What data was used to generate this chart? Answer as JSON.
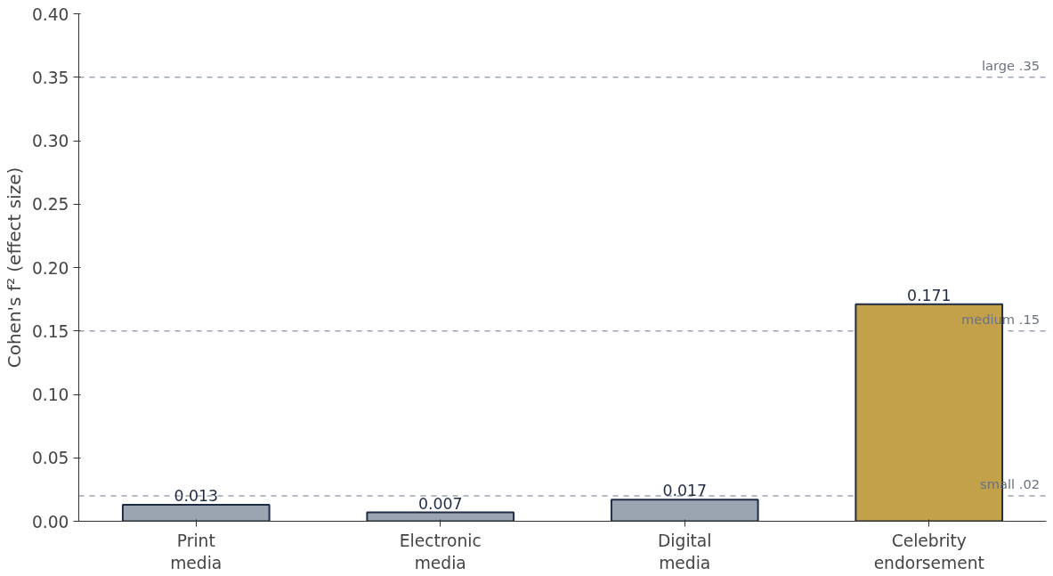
{
  "chart_data": {
    "type": "bar",
    "ylabel": "Cohen's f² (effect size)",
    "categories": [
      "Print\nmedia",
      "Electronic\nmedia",
      "Digital\nmedia",
      "Celebrity\nendorsement"
    ],
    "values": [
      0.013,
      0.007,
      0.017,
      0.171
    ],
    "colors": [
      "#9aa5b1",
      "#9aa5b1",
      "#9aa5b1",
      "#c2a14a"
    ],
    "data_labels": true,
    "ylim": [
      0,
      0.4
    ],
    "yticks": [
      {
        "value": 0,
        "label": "0.00"
      },
      {
        "value": 0.05,
        "label": "0.05"
      },
      {
        "value": 0.1,
        "label": "0.10"
      },
      {
        "value": 0.15,
        "label": "0.15"
      },
      {
        "value": 0.2,
        "label": "0.20"
      },
      {
        "value": 0.25,
        "label": "0.25"
      },
      {
        "value": 0.3,
        "label": "0.30"
      },
      {
        "value": 0.35,
        "label": "0.35"
      },
      {
        "value": 0.4,
        "label": "0.40"
      }
    ],
    "ref_lines": [
      {
        "axis": "y",
        "value": 0.02,
        "label": "small  .02",
        "color": "#9aa3b5",
        "line_style": "dashed"
      },
      {
        "axis": "y",
        "value": 0.15,
        "label": "medium  .15",
        "color": "#9aa3b5",
        "line_style": "dashed"
      },
      {
        "axis": "y",
        "value": 0.35,
        "label": "large  .35",
        "color": "#9aa3b5",
        "line_style": "dashed"
      }
    ],
    "grid": false
  }
}
